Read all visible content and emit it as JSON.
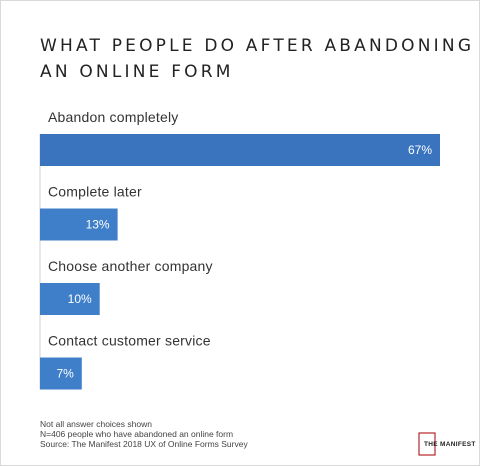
{
  "chart_data": {
    "type": "bar",
    "orientation": "horizontal",
    "title_lines": [
      "WHAT PEOPLE DO AFTER ABANDONING",
      "AN ONLINE FORM"
    ],
    "categories": [
      "Abandon completely",
      "Complete later",
      "Choose another company",
      "Contact customer service"
    ],
    "values": [
      67,
      13,
      10,
      7
    ],
    "value_labels": [
      "67%",
      "13%",
      "10%",
      "7%"
    ],
    "xlim": [
      0,
      67
    ],
    "grid": false,
    "legend": "none",
    "bar_color": "#3f7fc9"
  },
  "notes": [
    "Not all answer choices shown",
    "N=406 people who have abandoned an online form",
    "Source: The Manifest 2018 UX of Online Forms Survey"
  ],
  "logo": {
    "text": "THE MANIFEST",
    "accent_color": "#b3282d"
  }
}
